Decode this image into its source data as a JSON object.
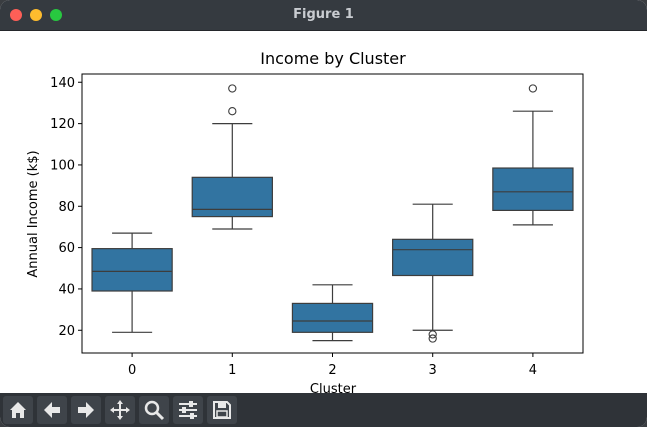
{
  "window": {
    "title": "Figure 1"
  },
  "toolbar": {
    "buttons": [
      "home-icon",
      "back-arrow-icon",
      "forward-arrow-icon",
      "pan-icon",
      "zoom-icon",
      "configure-subplots-icon",
      "save-icon"
    ]
  },
  "colors": {
    "box_fill": "#3274a1",
    "line": "#3d3d3d",
    "titlebar": "#353a40",
    "toolbar": "#2f3338"
  },
  "chart_data": {
    "type": "box",
    "title": "Income by Cluster",
    "xlabel": "Cluster",
    "ylabel": "Annual Income (k$)",
    "categories": [
      "0",
      "1",
      "2",
      "3",
      "4"
    ],
    "ylim": [
      9,
      144
    ],
    "yticks": [
      20,
      40,
      60,
      80,
      100,
      120,
      140
    ],
    "boxes": [
      {
        "category": "0",
        "whisker_low": 19,
        "q1": 39,
        "median": 48.5,
        "q3": 59.5,
        "whisker_high": 67,
        "outliers": []
      },
      {
        "category": "1",
        "whisker_low": 69,
        "q1": 75,
        "median": 78.5,
        "q3": 94,
        "whisker_high": 120,
        "outliers": [
          126,
          137
        ]
      },
      {
        "category": "2",
        "whisker_low": 15,
        "q1": 19,
        "median": 24.5,
        "q3": 33,
        "whisker_high": 42,
        "outliers": []
      },
      {
        "category": "3",
        "whisker_low": 20,
        "q1": 46.5,
        "median": 59,
        "q3": 64,
        "whisker_high": 81,
        "outliers": [
          16,
          18
        ]
      },
      {
        "category": "4",
        "whisker_low": 71,
        "q1": 78,
        "median": 87,
        "q3": 98.5,
        "whisker_high": 126,
        "outliers": [
          137
        ]
      }
    ]
  }
}
